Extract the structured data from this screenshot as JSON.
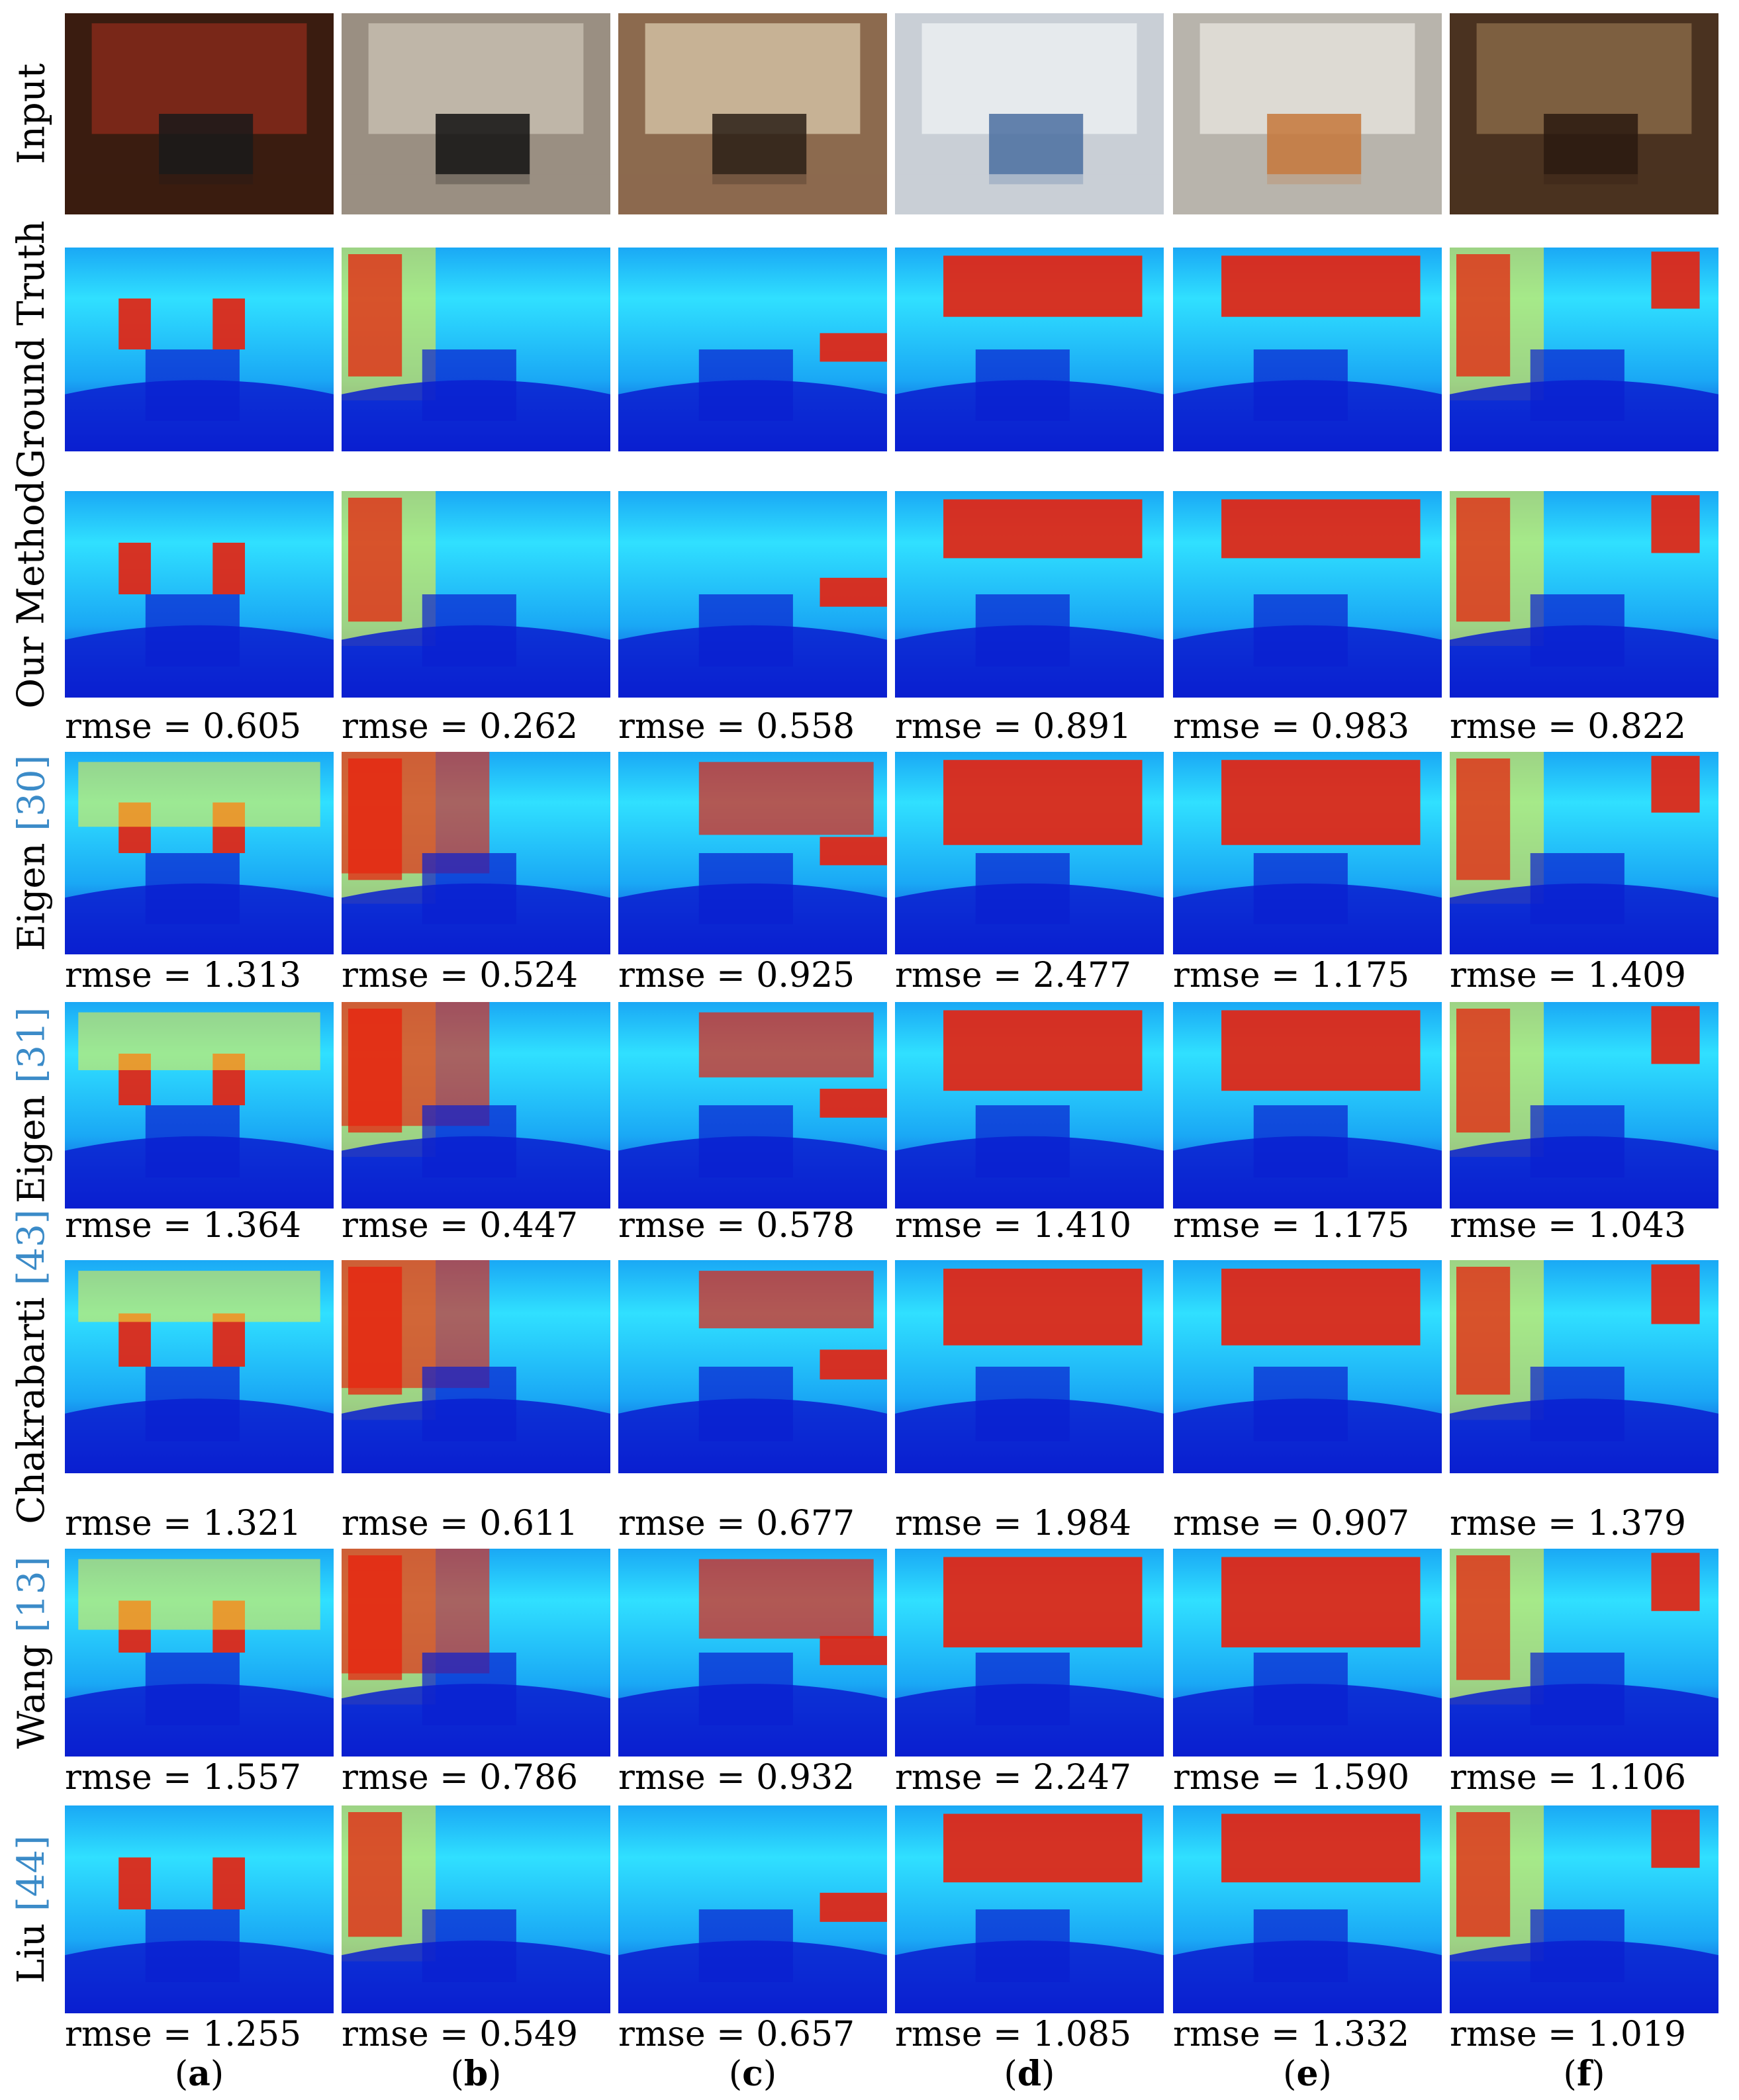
{
  "figure": {
    "rmse_prefix": "rmse = ",
    "columns": [
      "a",
      "b",
      "c",
      "d",
      "e",
      "f"
    ],
    "rows": [
      {
        "label": "Input",
        "cite": "",
        "kind": "photo",
        "rmse": []
      },
      {
        "label": "Ground Truth",
        "cite": "",
        "kind": "depth",
        "rmse": []
      },
      {
        "label": "Our Method",
        "cite": "",
        "kind": "depth",
        "rmse": [
          "0.605",
          "0.262",
          "0.558",
          "0.891",
          "0.983",
          "0.822"
        ]
      },
      {
        "label": "Eigen ",
        "cite": "[30]",
        "kind": "depth",
        "rmse": [
          "1.313",
          "0.524",
          "0.925",
          "2.477",
          "1.175",
          "1.409"
        ]
      },
      {
        "label": "Eigen ",
        "cite": "[31]",
        "kind": "depth",
        "rmse": [
          "1.364",
          "0.447",
          "0.578",
          "1.410",
          "1.175",
          "1.043"
        ]
      },
      {
        "label": "Chakrabarti ",
        "cite": "[43]",
        "kind": "depth",
        "rmse": [
          "1.321",
          "0.611",
          "0.677",
          "1.984",
          "0.907",
          "1.379"
        ]
      },
      {
        "label": "Wang ",
        "cite": "[13]",
        "kind": "depth",
        "rmse": [
          "1.557",
          "0.786",
          "0.932",
          "2.247",
          "1.590",
          "1.106"
        ]
      },
      {
        "label": "Liu ",
        "cite": "[44]",
        "kind": "depth",
        "rmse": [
          "1.255",
          "0.549",
          "0.657",
          "1.085",
          "1.332",
          "1.019"
        ]
      }
    ],
    "colors": {
      "cite": "#3b8bc8",
      "depth_near": "#0a1fd0",
      "depth_mid": "#1aa8f5",
      "depth_cyan": "#30e0ff",
      "depth_yellow": "#f5f03a",
      "depth_far": "#e8200c"
    }
  }
}
